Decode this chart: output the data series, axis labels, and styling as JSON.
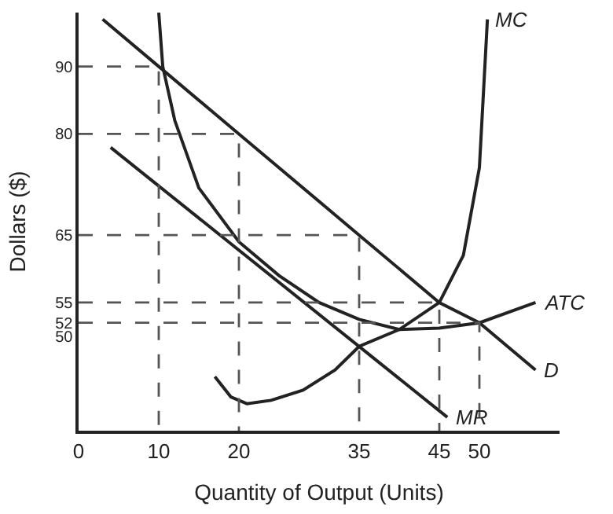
{
  "chart_data": {
    "type": "line",
    "xlabel": "Quantity of Output (Units)",
    "ylabel": "Dollars ($)",
    "xlim": [
      0,
      60
    ],
    "ylim": [
      36,
      98
    ],
    "xticks": [
      0,
      10,
      20,
      35,
      45,
      50
    ],
    "yticks": [
      50,
      52,
      55,
      65,
      80,
      90
    ],
    "grid": false,
    "legend": false,
    "marker": "none",
    "line_style": "solid",
    "series": [
      {
        "name": "D",
        "color": "#222222",
        "x": [
          3,
          10,
          20,
          35,
          45,
          50,
          57
        ],
        "values": [
          97,
          90,
          80,
          65,
          55,
          52,
          45
        ]
      },
      {
        "name": "MR",
        "color": "#222222",
        "x": [
          4,
          46
        ],
        "values": [
          78,
          38
        ]
      },
      {
        "name": "MC",
        "color": "#222222",
        "x": [
          17,
          19,
          21,
          24,
          28,
          32,
          35,
          40,
          45,
          48,
          50,
          51
        ],
        "values": [
          44,
          41,
          40,
          40.5,
          42,
          45,
          48.5,
          51,
          55,
          62,
          75,
          97
        ]
      },
      {
        "name": "ATC",
        "color": "#222222",
        "x": [
          10,
          10.5,
          12,
          15,
          20,
          25,
          30,
          35,
          40,
          45,
          50,
          57
        ],
        "values": [
          98,
          90,
          82,
          72,
          64,
          59,
          55,
          52.5,
          51,
          51.2,
          52,
          55
        ]
      },
      {
        "color": "#555555",
        "line_style": "dashed",
        "x": [
          0,
          10,
          10
        ],
        "values": [
          90,
          90,
          36
        ]
      },
      {
        "color": "#555555",
        "line_style": "dashed",
        "x": [
          0,
          20,
          20
        ],
        "values": [
          80,
          80,
          36
        ]
      },
      {
        "color": "#555555",
        "line_style": "dashed",
        "x": [
          0,
          35,
          35
        ],
        "values": [
          65,
          65,
          36
        ]
      },
      {
        "color": "#555555",
        "line_style": "dashed",
        "x": [
          0,
          45,
          45
        ],
        "values": [
          55,
          55,
          36
        ]
      },
      {
        "color": "#555555",
        "line_style": "dashed",
        "x": [
          0,
          50,
          50
        ],
        "values": [
          52,
          52,
          36
        ]
      }
    ]
  }
}
